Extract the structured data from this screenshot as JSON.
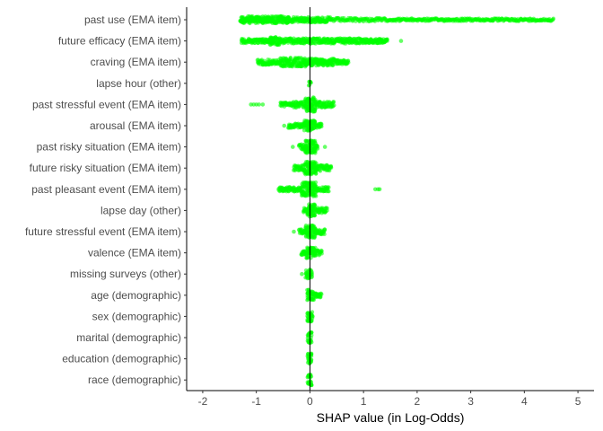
{
  "chart_data": {
    "type": "scatter",
    "subtype": "beeswarm",
    "xlabel": "SHAP value (in Log-Odds)",
    "ylabel": "",
    "xlim": [
      -2.3,
      5.3
    ],
    "xticks": [
      -2,
      -1,
      0,
      1,
      2,
      3,
      4,
      5
    ],
    "xtick_labels": [
      "-2",
      "-1",
      "0",
      "1",
      "2",
      "3",
      "4",
      "5"
    ],
    "grid": false,
    "reference_line_x": 0,
    "point_color": "#00FF00",
    "reference_line_color": "#000000",
    "axis_color": "#000000",
    "features": [
      {
        "label": "past use (EMA item)",
        "min": -1.33,
        "max": 4.55,
        "clusters": [
          [
            -1.3,
            -0.4,
            4
          ],
          [
            -0.4,
            0.4,
            3
          ],
          [
            0.4,
            1.4,
            2
          ],
          [
            1.4,
            2.6,
            1.5
          ],
          [
            2.6,
            4.55,
            1.5
          ]
        ],
        "outliers": [
          1.55,
          1.6,
          1.7,
          1.8,
          1.9,
          2.0,
          2.1,
          2.25,
          2.4,
          2.5,
          2.7,
          2.85,
          2.95,
          3.1,
          3.25,
          3.4,
          3.55,
          3.7,
          3.85,
          4.0,
          4.15,
          4.3,
          4.45
        ]
      },
      {
        "label": "future efficacy (EMA item)",
        "min": -1.28,
        "max": 1.7,
        "clusters": [
          [
            -1.28,
            -0.7,
            2.5
          ],
          [
            -0.75,
            -0.55,
            4.5
          ],
          [
            -0.55,
            1.0,
            3
          ],
          [
            1.0,
            1.45,
            2.5
          ]
        ],
        "outliers": [
          1.7
        ]
      },
      {
        "label": "craving (EMA item)",
        "min": -0.98,
        "max": 0.72,
        "clusters": [
          [
            -0.98,
            -0.75,
            3
          ],
          [
            -0.75,
            -0.55,
            2.5
          ],
          [
            -0.55,
            0.0,
            5
          ],
          [
            0.0,
            0.45,
            4
          ],
          [
            0.45,
            0.72,
            2.5
          ]
        ],
        "outliers": []
      },
      {
        "label": "lapse hour (other)",
        "min": -0.02,
        "max": 0.02,
        "clusters": [
          [
            -0.02,
            0.02,
            2.5
          ]
        ],
        "outliers": []
      },
      {
        "label": "past stressful event (EMA item)",
        "min": -1.1,
        "max": 0.45,
        "clusters": [
          [
            -0.55,
            -0.3,
            2.5
          ],
          [
            -0.3,
            -0.08,
            3.5
          ],
          [
            -0.08,
            0.1,
            8
          ],
          [
            0.1,
            0.45,
            3.5
          ]
        ],
        "outliers": [
          -1.1,
          -1.05,
          -1.0,
          -0.95,
          -0.88
        ]
      },
      {
        "label": "arousal (EMA item)",
        "min": -0.48,
        "max": 0.22,
        "clusters": [
          [
            -0.4,
            -0.1,
            2.5
          ],
          [
            -0.1,
            0.1,
            6
          ],
          [
            0.1,
            0.22,
            2.5
          ]
        ],
        "outliers": [
          -0.48
        ]
      },
      {
        "label": "past risky situation (EMA item)",
        "min": -0.32,
        "max": 0.28,
        "clusters": [
          [
            -0.2,
            -0.08,
            3
          ],
          [
            -0.08,
            0.1,
            7
          ],
          [
            0.1,
            0.15,
            2.5
          ]
        ],
        "outliers": [
          -0.32,
          0.28
        ]
      },
      {
        "label": "future risky situation (EMA item)",
        "min": -0.3,
        "max": 0.4,
        "clusters": [
          [
            -0.3,
            -0.1,
            3
          ],
          [
            -0.1,
            0.12,
            7
          ],
          [
            0.12,
            0.4,
            3.5
          ]
        ],
        "outliers": []
      },
      {
        "label": "past pleasant event (EMA item)",
        "min": -0.58,
        "max": 1.3,
        "clusters": [
          [
            -0.58,
            -0.15,
            2.5
          ],
          [
            -0.15,
            0.12,
            8
          ],
          [
            0.12,
            0.35,
            2.5
          ]
        ],
        "outliers": [
          1.22,
          1.27,
          1.3
        ]
      },
      {
        "label": "lapse day (other)",
        "min": -0.12,
        "max": 0.32,
        "clusters": [
          [
            -0.12,
            -0.04,
            3
          ],
          [
            -0.04,
            0.1,
            7
          ],
          [
            0.1,
            0.32,
            3
          ]
        ],
        "outliers": []
      },
      {
        "label": "future stressful event (EMA item)",
        "min": -0.3,
        "max": 0.28,
        "clusters": [
          [
            -0.2,
            -0.08,
            2.5
          ],
          [
            -0.08,
            0.1,
            7
          ],
          [
            0.1,
            0.28,
            3
          ]
        ],
        "outliers": [
          -0.3
        ]
      },
      {
        "label": "valence (EMA item)",
        "min": -0.16,
        "max": 0.22,
        "clusters": [
          [
            -0.16,
            -0.06,
            2.5
          ],
          [
            -0.06,
            0.1,
            6
          ],
          [
            0.1,
            0.22,
            3
          ]
        ],
        "outliers": []
      },
      {
        "label": "missing surveys (other)",
        "min": -0.15,
        "max": 0.05,
        "clusters": [
          [
            -0.08,
            0.05,
            5
          ]
        ],
        "outliers": [
          -0.15
        ]
      },
      {
        "label": "age (demographic)",
        "min": -0.05,
        "max": 0.22,
        "clusters": [
          [
            -0.05,
            0.08,
            6
          ],
          [
            0.08,
            0.22,
            2.5
          ]
        ],
        "outliers": []
      },
      {
        "label": "sex (demographic)",
        "min": -0.05,
        "max": 0.05,
        "clusters": [
          [
            -0.05,
            0.05,
            6
          ]
        ],
        "outliers": []
      },
      {
        "label": "marital (demographic)",
        "min": -0.04,
        "max": 0.04,
        "clusters": [
          [
            -0.04,
            0.04,
            6
          ]
        ],
        "outliers": []
      },
      {
        "label": "education (demographic)",
        "min": -0.04,
        "max": 0.04,
        "clusters": [
          [
            -0.04,
            0.04,
            6
          ]
        ],
        "outliers": []
      },
      {
        "label": "race (demographic)",
        "min": -0.04,
        "max": 0.04,
        "clusters": [
          [
            -0.04,
            0.04,
            6
          ]
        ],
        "outliers": []
      }
    ]
  }
}
